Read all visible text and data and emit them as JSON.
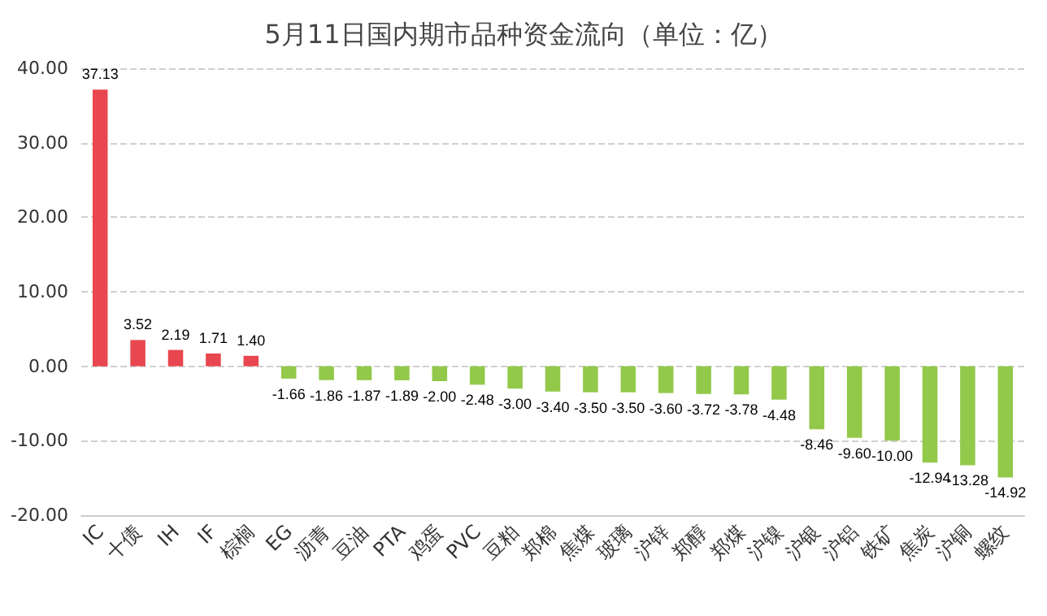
{
  "chart_data": {
    "type": "bar",
    "title": "5月11日国内期市品种资金流向（单位：亿）",
    "categories": [
      "IC",
      "十债",
      "IH",
      "IF",
      "棕榈",
      "EG",
      "沥青",
      "豆油",
      "PTA",
      "鸡蛋",
      "PVC",
      "豆粕",
      "郑棉",
      "焦煤",
      "玻璃",
      "沪锌",
      "郑醇",
      "郑煤",
      "沪镍",
      "沪银",
      "沪铝",
      "铁矿",
      "焦炭",
      "沪铜",
      "螺纹"
    ],
    "values": [
      37.13,
      3.52,
      2.19,
      1.71,
      1.4,
      -1.66,
      -1.86,
      -1.87,
      -1.89,
      -2.0,
      -2.48,
      -3.0,
      -3.4,
      -3.5,
      -3.5,
      -3.6,
      -3.72,
      -3.78,
      -4.48,
      -8.46,
      -9.6,
      -10.0,
      -12.94,
      -13.28,
      -14.92
    ],
    "value_labels": [
      "37.13",
      "3.52",
      "2.19",
      "1.71",
      "1.40",
      "-1.66",
      "-1.86",
      "-1.87",
      "-1.89",
      "-2.00",
      "-2.48",
      "-3.00",
      "-3.40",
      "-3.50",
      "-3.50",
      "-3.60",
      "-3.72",
      "-3.78",
      "-4.48",
      "-8.46",
      "-9.60",
      "-10.00",
      "-12.94",
      "-13.28",
      "-14.92"
    ],
    "colors": [
      "#e8474f",
      "#e8474f",
      "#e8474f",
      "#e8474f",
      "#e8474f",
      "#92c94a",
      "#92c94a",
      "#92c94a",
      "#92c94a",
      "#92c94a",
      "#92c94a",
      "#92c94a",
      "#92c94a",
      "#92c94a",
      "#92c94a",
      "#92c94a",
      "#92c94a",
      "#92c94a",
      "#92c94a",
      "#92c94a",
      "#92c94a",
      "#92c94a",
      "#92c94a",
      "#92c94a",
      "#92c94a"
    ],
    "ylim": [
      -20,
      40
    ],
    "yticks": [
      {
        "value": -20,
        "label": "-20.00"
      },
      {
        "value": -10,
        "label": "-10.00"
      },
      {
        "value": 0,
        "label": "0.00"
      },
      {
        "value": 10,
        "label": "10.00"
      },
      {
        "value": 20,
        "label": "20.00"
      },
      {
        "value": 30,
        "label": "30.00"
      },
      {
        "value": 40,
        "label": "40.00"
      }
    ],
    "grid": "y"
  }
}
